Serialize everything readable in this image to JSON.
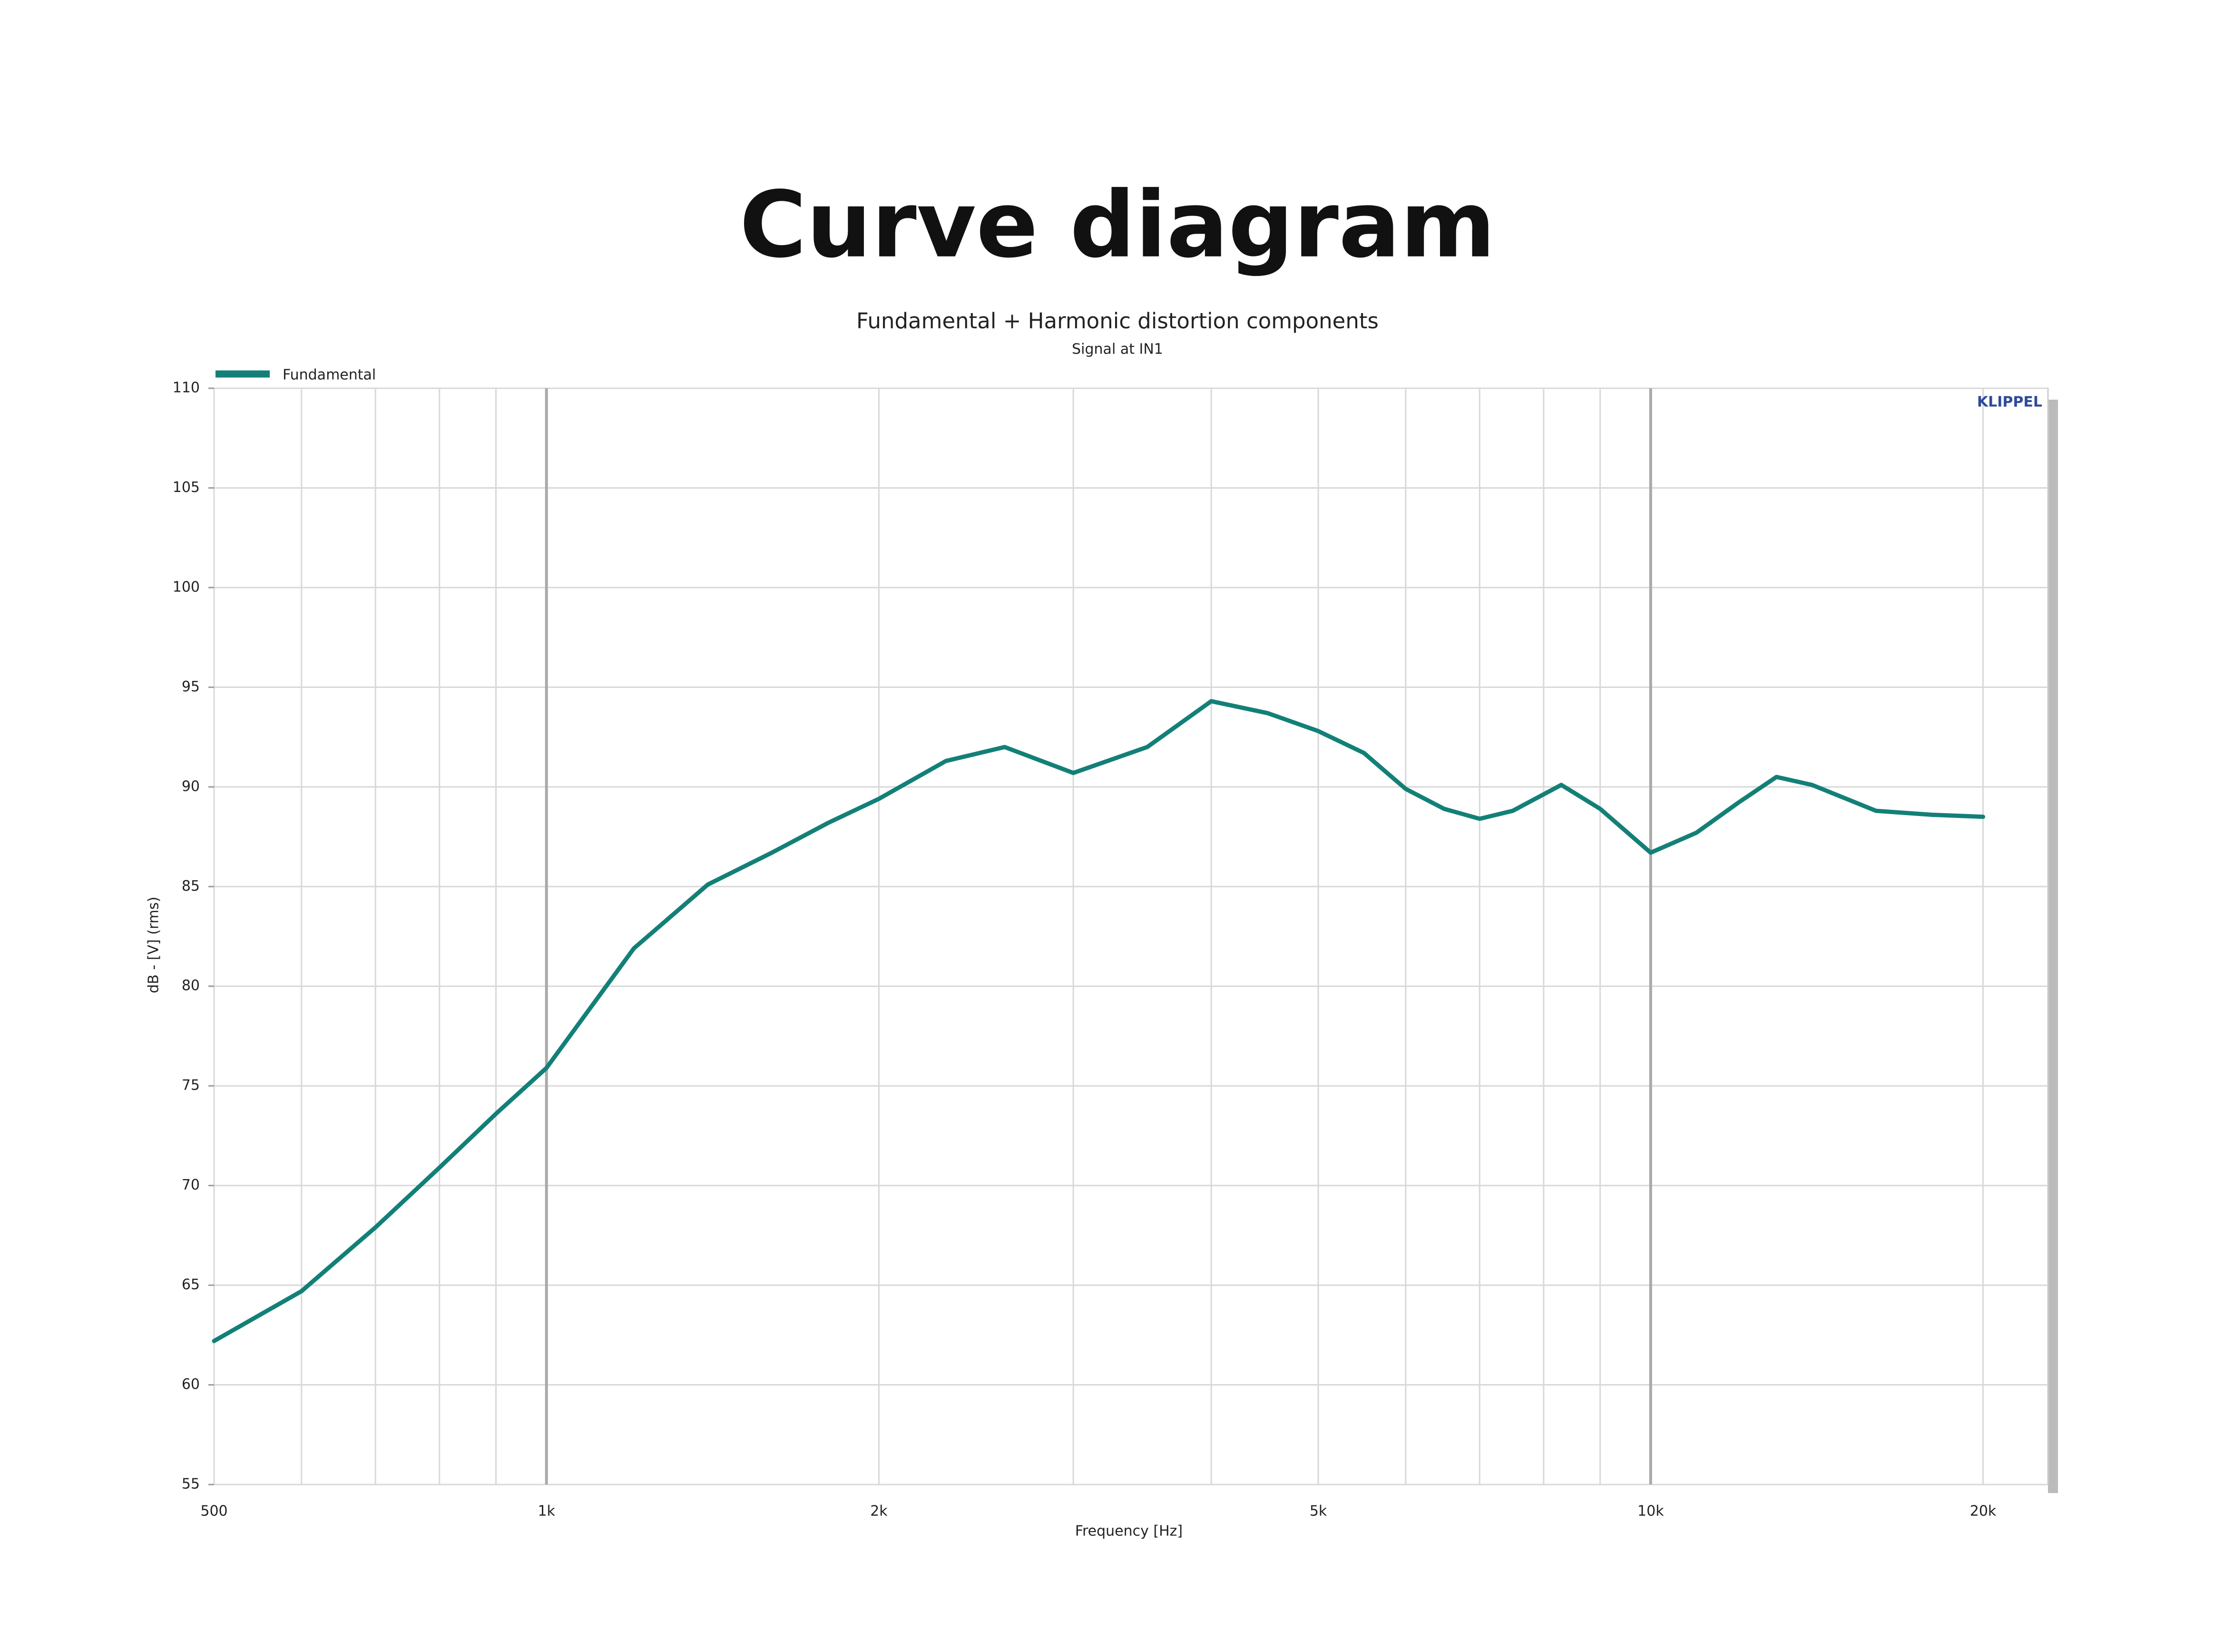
{
  "heading": "Curve diagram",
  "chart_data": {
    "type": "line",
    "title": "Fundamental + Harmonic distortion components",
    "subtitle": "Signal at IN1",
    "watermark": "KLIPPEL",
    "x_label": "Frequency [Hz]",
    "y_label": "dB - [V] (rms)",
    "x_scale": "log",
    "xlim": [
      500,
      22900
    ],
    "xticks": [
      {
        "value": 500,
        "label": "500"
      },
      {
        "value": 1000,
        "label": "1k"
      },
      {
        "value": 2000,
        "label": "2k"
      },
      {
        "value": 5000,
        "label": "5k"
      },
      {
        "value": 10000,
        "label": "10k"
      },
      {
        "value": 20000,
        "label": "20k"
      }
    ],
    "x_minor_grid": [
      600,
      700,
      800,
      900,
      3000,
      4000,
      6000,
      7000,
      8000,
      9000
    ],
    "ylim": [
      55,
      110
    ],
    "yticks": [
      55,
      60,
      65,
      70,
      75,
      80,
      85,
      90,
      95,
      100,
      105,
      110
    ],
    "grid": true,
    "legend": "top-left",
    "x": [
      500,
      600,
      700,
      800,
      900,
      1000,
      1200,
      1400,
      1600,
      1800,
      2000,
      2300,
      2600,
      3000,
      3500,
      4000,
      4500,
      5000,
      5500,
      6000,
      6500,
      7000,
      7500,
      8300,
      9000,
      10000,
      11000,
      12000,
      13000,
      14000,
      16000,
      18000,
      20000
    ],
    "series": [
      {
        "name": "Fundamental",
        "color": "#138078",
        "values": [
          62.2,
          64.7,
          67.9,
          70.9,
          73.6,
          75.9,
          81.9,
          85.1,
          86.7,
          88.2,
          89.4,
          91.3,
          92.0,
          90.7,
          92.0,
          94.3,
          93.7,
          92.8,
          91.7,
          89.9,
          88.9,
          88.4,
          88.8,
          90.1,
          88.9,
          86.7,
          87.7,
          89.2,
          90.5,
          90.1,
          88.8,
          88.6,
          88.5
        ]
      }
    ]
  }
}
